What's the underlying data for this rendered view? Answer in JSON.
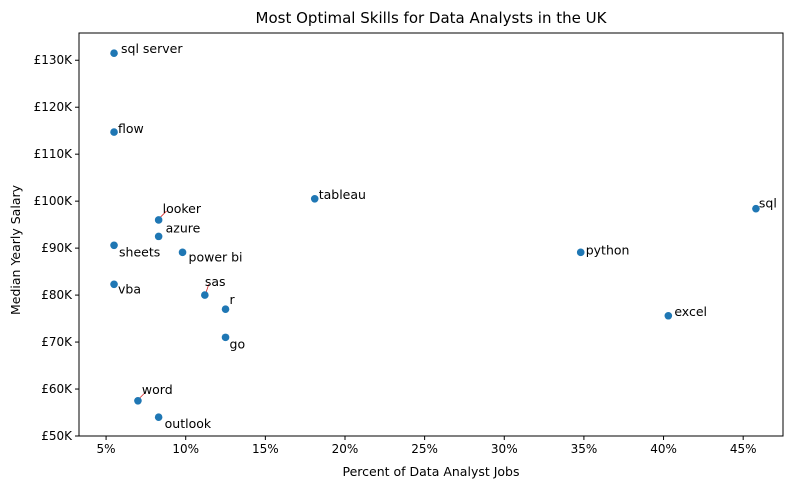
{
  "chart_data": {
    "type": "scatter",
    "title": "Most Optimal Skills for Data Analysts in the UK",
    "xlabel": "Percent of Data Analyst Jobs",
    "ylabel": "Median Yearly Salary",
    "xlim": [
      3.3,
      47.5
    ],
    "ylim": [
      50000,
      135800
    ],
    "x_ticks": [
      5,
      10,
      15,
      20,
      25,
      30,
      35,
      40,
      45
    ],
    "x_tick_labels": [
      "5%",
      "10%",
      "15%",
      "20%",
      "25%",
      "30%",
      "35%",
      "40%",
      "45%"
    ],
    "y_ticks": [
      50000,
      60000,
      70000,
      80000,
      90000,
      100000,
      110000,
      120000,
      130000
    ],
    "y_tick_labels": [
      "£50K",
      "£60K",
      "£70K",
      "£80K",
      "£90K",
      "£100K",
      "£110K",
      "£120K",
      "£130K"
    ],
    "grid": false,
    "legend": "none",
    "point_color": "#1f77b4",
    "leader_color": "#d62728",
    "points": [
      {
        "label": "sql server",
        "x": 5.5,
        "y": 131500
      },
      {
        "label": "flow",
        "x": 5.5,
        "y": 114700
      },
      {
        "label": "tableau",
        "x": 18.1,
        "y": 100500
      },
      {
        "label": "sql",
        "x": 45.8,
        "y": 98400
      },
      {
        "label": "looker",
        "x": 8.3,
        "y": 96000
      },
      {
        "label": "azure",
        "x": 8.3,
        "y": 92500
      },
      {
        "label": "sheets",
        "x": 5.5,
        "y": 90600
      },
      {
        "label": "power bi",
        "x": 9.8,
        "y": 89100
      },
      {
        "label": "python",
        "x": 34.8,
        "y": 89100
      },
      {
        "label": "vba",
        "x": 5.5,
        "y": 82300
      },
      {
        "label": "sas",
        "x": 11.2,
        "y": 80000
      },
      {
        "label": "r",
        "x": 12.5,
        "y": 77000
      },
      {
        "label": "excel",
        "x": 40.3,
        "y": 75600
      },
      {
        "label": "go",
        "x": 12.5,
        "y": 71000
      },
      {
        "label": "word",
        "x": 7.0,
        "y": 57500
      },
      {
        "label": "outlook",
        "x": 8.3,
        "y": 54000
      }
    ]
  }
}
